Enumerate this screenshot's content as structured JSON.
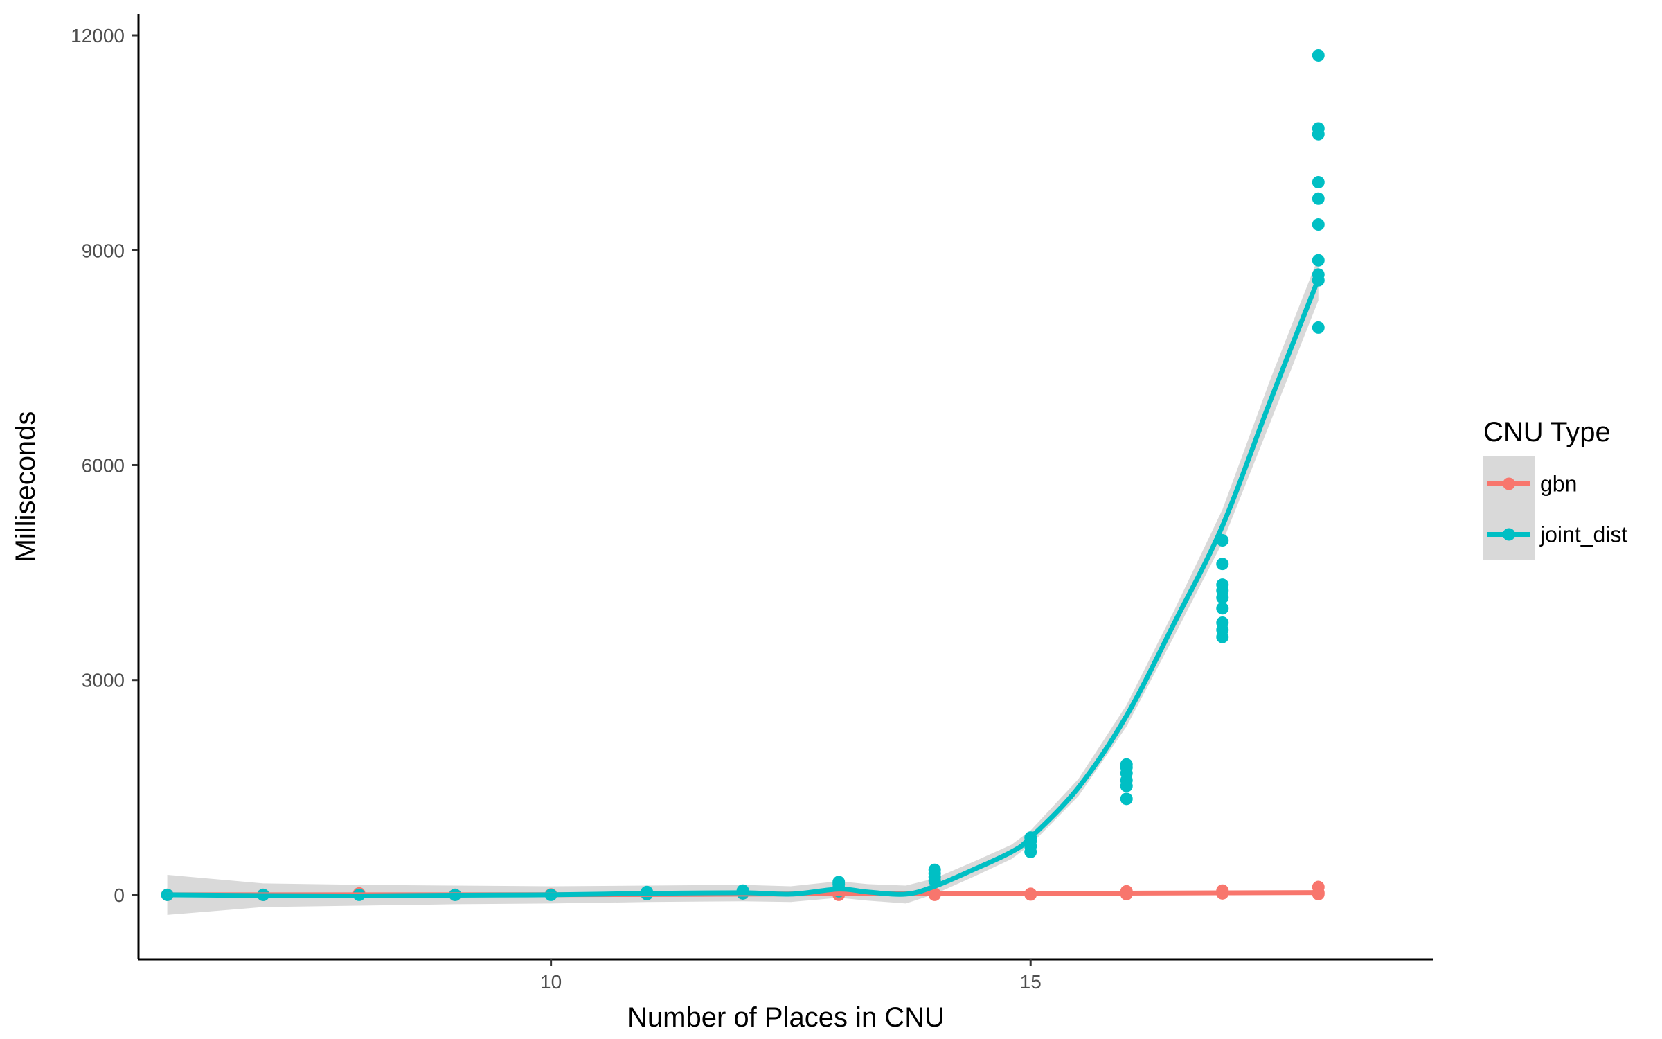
{
  "chart_data": {
    "type": "scatter",
    "xlabel": "Number of Places in CNU",
    "ylabel": "Milliseconds",
    "xlim": [
      5.7,
      19.2
    ],
    "ylim": [
      -900,
      12300
    ],
    "x_ticks": [
      10,
      15
    ],
    "y_ticks": [
      0,
      3000,
      6000,
      9000,
      12000
    ],
    "grid": false,
    "legend": {
      "title": "CNU Type",
      "position": "right",
      "entries": [
        {
          "label": "gbn",
          "color": "#F8766D"
        },
        {
          "label": "joint_dist",
          "color": "#00BFC4"
        }
      ]
    },
    "series": [
      {
        "name": "gbn",
        "color": "#F8766D",
        "points": [
          [
            6,
            0
          ],
          [
            7,
            0
          ],
          [
            8,
            20
          ],
          [
            8,
            5
          ],
          [
            9,
            0
          ],
          [
            10,
            5
          ],
          [
            11,
            10
          ],
          [
            11,
            25
          ],
          [
            12,
            20
          ],
          [
            12,
            50
          ],
          [
            13,
            0
          ],
          [
            13,
            10
          ],
          [
            14,
            0
          ],
          [
            14,
            15
          ],
          [
            15,
            5
          ],
          [
            15,
            15
          ],
          [
            16,
            10
          ],
          [
            16,
            30
          ],
          [
            16,
            50
          ],
          [
            17,
            20
          ],
          [
            17,
            40
          ],
          [
            17,
            60
          ],
          [
            18,
            10
          ],
          [
            18,
            30
          ],
          [
            18,
            110
          ]
        ],
        "smooth": [
          [
            6,
            0
          ],
          [
            7,
            0
          ],
          [
            8,
            0
          ],
          [
            9,
            0
          ],
          [
            10,
            2
          ],
          [
            11,
            5
          ],
          [
            12,
            10
          ],
          [
            13,
            15
          ],
          [
            14,
            18
          ],
          [
            15,
            20
          ],
          [
            16,
            24
          ],
          [
            17,
            28
          ],
          [
            18,
            32
          ]
        ],
        "band_halfwidth": 30
      },
      {
        "name": "joint_dist",
        "color": "#00BFC4",
        "points": [
          [
            6,
            0
          ],
          [
            7,
            0
          ],
          [
            8,
            0
          ],
          [
            9,
            0
          ],
          [
            10,
            0
          ],
          [
            11,
            10
          ],
          [
            11,
            40
          ],
          [
            12,
            20
          ],
          [
            12,
            60
          ],
          [
            13,
            50
          ],
          [
            13,
            100
          ],
          [
            13,
            150
          ],
          [
            13,
            180
          ],
          [
            14,
            200
          ],
          [
            14,
            250
          ],
          [
            14,
            300
          ],
          [
            14,
            350
          ],
          [
            15,
            600
          ],
          [
            15,
            680
          ],
          [
            15,
            750
          ],
          [
            15,
            800
          ],
          [
            16,
            1340
          ],
          [
            16,
            1520
          ],
          [
            16,
            1600
          ],
          [
            16,
            1700
          ],
          [
            16,
            1780
          ],
          [
            16,
            1820
          ],
          [
            17,
            3600
          ],
          [
            17,
            3700
          ],
          [
            17,
            3800
          ],
          [
            17,
            4000
          ],
          [
            17,
            4150
          ],
          [
            17,
            4250
          ],
          [
            17,
            4330
          ],
          [
            17,
            4620
          ],
          [
            17,
            4950
          ],
          [
            18,
            7920
          ],
          [
            18,
            8580
          ],
          [
            18,
            8660
          ],
          [
            18,
            8860
          ],
          [
            18,
            9360
          ],
          [
            18,
            9720
          ],
          [
            18,
            9950
          ],
          [
            18,
            10620
          ],
          [
            18,
            10700
          ],
          [
            18,
            11720
          ]
        ],
        "smooth": [
          [
            6,
            0
          ],
          [
            7,
            -10
          ],
          [
            8,
            -15
          ],
          [
            9,
            -5
          ],
          [
            10,
            0
          ],
          [
            11,
            20
          ],
          [
            12,
            30
          ],
          [
            12.5,
            10
          ],
          [
            13,
            80
          ],
          [
            13.3,
            40
          ],
          [
            13.7,
            10
          ],
          [
            14,
            120
          ],
          [
            14.4,
            350
          ],
          [
            14.8,
            600
          ],
          [
            15,
            800
          ],
          [
            15.5,
            1500
          ],
          [
            16,
            2500
          ],
          [
            16.5,
            3800
          ],
          [
            17,
            5150
          ],
          [
            17.5,
            6900
          ],
          [
            18,
            8600
          ]
        ],
        "band": [
          [
            6,
            280,
            -280
          ],
          [
            7,
            160,
            -170
          ],
          [
            8,
            140,
            -150
          ],
          [
            9,
            130,
            -130
          ],
          [
            10,
            120,
            -120
          ],
          [
            11,
            130,
            -100
          ],
          [
            12,
            140,
            -90
          ],
          [
            12.5,
            120,
            -100
          ],
          [
            13,
            190,
            -40
          ],
          [
            13.3,
            150,
            -80
          ],
          [
            13.7,
            130,
            -120
          ],
          [
            14,
            230,
            10
          ],
          [
            14.4,
            460,
            250
          ],
          [
            14.8,
            700,
            500
          ],
          [
            15,
            900,
            700
          ],
          [
            15.5,
            1620,
            1380
          ],
          [
            16,
            2650,
            2350
          ],
          [
            16.5,
            3980,
            3620
          ],
          [
            17,
            5380,
            4920
          ],
          [
            17.5,
            7200,
            6600
          ],
          [
            18,
            8900,
            8300
          ]
        ]
      }
    ]
  }
}
